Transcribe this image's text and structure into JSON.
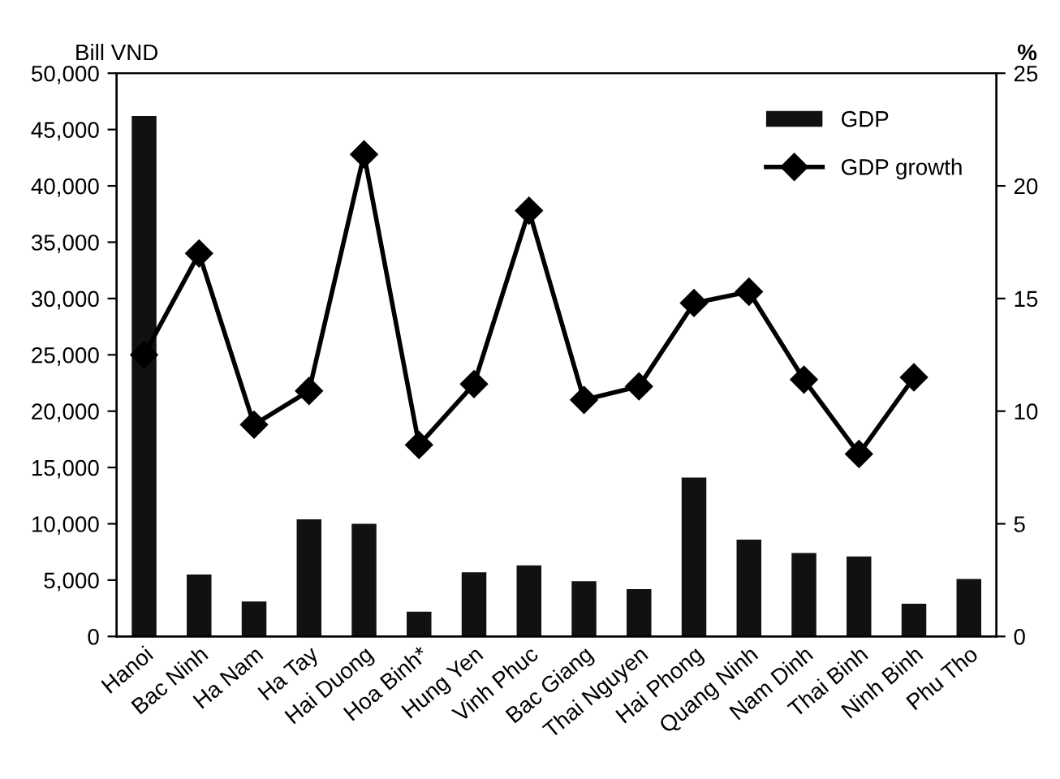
{
  "chart_data": {
    "type": "bar",
    "ylabel": "Bill VND",
    "y2label": "%",
    "categories": [
      "Hanoi",
      "Bac Ninh",
      "Ha Nam",
      "Ha Tay",
      "Hai Duong",
      "Hoa Binh*",
      "Hung Yen",
      "Vinh Phuc",
      "Bac Giang",
      "Thai Nguyen",
      "Hai Phong",
      "Quang Ninh",
      "Nam Dinh",
      "Thai Binh",
      "Ninh Binh",
      "Phu Tho"
    ],
    "series": [
      {
        "name": "GDP",
        "color": "#111111",
        "values": [
          46200,
          5500,
          3100,
          10400,
          10000,
          2200,
          5700,
          6300,
          4900,
          4200,
          14100,
          8600,
          7400,
          7100,
          2900,
          5100
        ]
      },
      {
        "name": "GDP growth",
        "type": "line",
        "axis": "y2",
        "color": "#000000",
        "marker": "diamond",
        "values": [
          12.5,
          17.0,
          9.4,
          10.9,
          21.4,
          8.5,
          11.2,
          18.9,
          10.5,
          11.1,
          14.8,
          15.3,
          11.4,
          8.1,
          11.5,
          null
        ]
      }
    ],
    "ylim": [
      0,
      50000
    ],
    "yticks": [
      {
        "value": 0,
        "label": "0"
      },
      {
        "value": 5000,
        "label": "5,000"
      },
      {
        "value": 10000,
        "label": "10,000"
      },
      {
        "value": 15000,
        "label": "15,000"
      },
      {
        "value": 20000,
        "label": "20,000"
      },
      {
        "value": 25000,
        "label": "25,000"
      },
      {
        "value": 30000,
        "label": "30,000"
      },
      {
        "value": 35000,
        "label": "35,000"
      },
      {
        "value": 40000,
        "label": "40,000"
      },
      {
        "value": 45000,
        "label": "45,000"
      },
      {
        "value": 50000,
        "label": "50,000"
      }
    ],
    "y2lim": [
      0,
      25
    ],
    "y2ticks": [
      0,
      5,
      10,
      15,
      20,
      25
    ],
    "grid": false,
    "legend": "top right"
  }
}
